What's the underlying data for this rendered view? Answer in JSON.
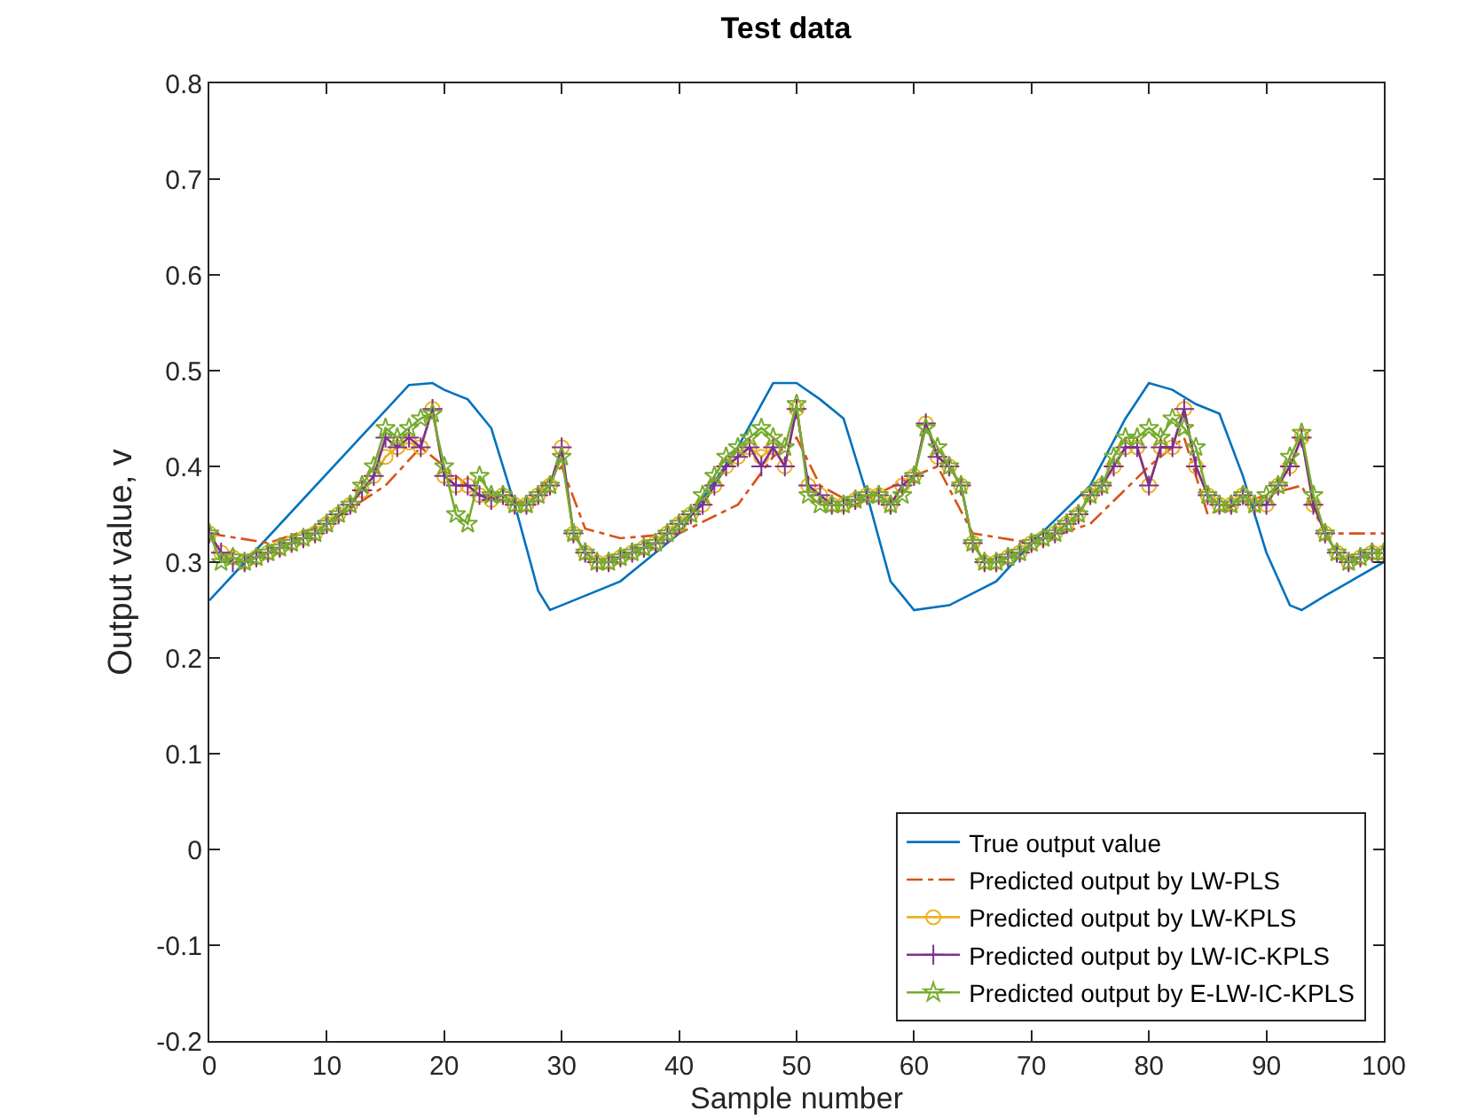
{
  "chart_data": {
    "type": "line",
    "title": "Test data",
    "xlabel": "Sample number",
    "ylabel": "Output value, v",
    "xlim": [
      0,
      100
    ],
    "xticks": [
      0,
      10,
      20,
      30,
      40,
      50,
      60,
      70,
      80,
      90,
      100
    ],
    "ylim": [
      -0.2,
      0.8
    ],
    "yticks": [
      -0.2,
      -0.1,
      0,
      0.1,
      0.2,
      0.3,
      0.4,
      0.5,
      0.6,
      0.7,
      0.8
    ],
    "grid": false,
    "legend": "bottom right",
    "x": [
      0,
      1,
      2,
      3,
      4,
      5,
      6,
      7,
      8,
      9,
      10,
      11,
      12,
      13,
      14,
      15,
      16,
      17,
      18,
      19,
      20,
      21,
      22,
      23,
      24,
      25,
      26,
      27,
      28,
      29,
      30,
      31,
      32,
      33,
      34,
      35,
      36,
      37,
      38,
      39,
      40,
      41,
      42,
      43,
      44,
      45,
      46,
      47,
      48,
      49,
      50,
      51,
      52,
      53,
      54,
      55,
      56,
      57,
      58,
      59,
      60,
      61,
      62,
      63,
      64,
      65,
      66,
      67,
      68,
      69,
      70,
      71,
      72,
      73,
      74,
      75,
      76,
      77,
      78,
      79,
      80,
      81,
      82,
      83,
      84,
      85,
      86,
      87,
      88,
      89,
      90,
      91,
      92,
      93,
      94,
      95,
      96,
      97,
      98,
      99,
      100
    ],
    "series": [
      {
        "name": "True output value",
        "color": "#0072bd",
        "marker": "none",
        "line_style": "solid",
        "x": [
          0,
          17,
          19,
          20,
          22,
          24,
          26,
          28,
          29,
          30,
          35,
          40,
          45,
          48,
          50,
          52,
          54,
          56,
          58,
          60,
          63,
          67,
          70,
          75,
          78,
          80,
          82,
          84,
          86,
          88,
          90,
          92,
          93,
          95,
          100
        ],
        "values": [
          0.26,
          0.485,
          0.487,
          0.48,
          0.47,
          0.44,
          0.36,
          0.27,
          0.25,
          0.255,
          0.28,
          0.33,
          0.42,
          0.487,
          0.487,
          0.47,
          0.45,
          0.37,
          0.28,
          0.25,
          0.255,
          0.28,
          0.32,
          0.38,
          0.45,
          0.487,
          0.48,
          0.465,
          0.455,
          0.39,
          0.31,
          0.255,
          0.25,
          0.265,
          0.3
        ]
      },
      {
        "name": "Predicted output by LW-PLS",
        "color": "#d95319",
        "marker": "none",
        "line_style": "dashdot",
        "x": [
          0,
          5,
          10,
          15,
          18,
          20,
          23,
          27,
          30,
          32,
          35,
          40,
          45,
          48,
          50,
          52,
          55,
          60,
          62,
          65,
          70,
          75,
          80,
          83,
          85,
          90,
          93,
          95,
          100
        ],
        "values": [
          0.33,
          0.32,
          0.34,
          0.38,
          0.42,
          0.4,
          0.37,
          0.36,
          0.4,
          0.335,
          0.325,
          0.33,
          0.36,
          0.41,
          0.43,
          0.38,
          0.36,
          0.39,
          0.4,
          0.33,
          0.32,
          0.34,
          0.4,
          0.43,
          0.35,
          0.37,
          0.38,
          0.33,
          0.33
        ]
      },
      {
        "name": "Predicted output by LW-KPLS",
        "color": "#edb120",
        "marker": "circle",
        "line_style": "solid",
        "values": [
          0.33,
          0.31,
          0.305,
          0.3,
          0.305,
          0.31,
          0.315,
          0.32,
          0.325,
          0.33,
          0.34,
          0.35,
          0.36,
          0.375,
          0.39,
          0.41,
          0.42,
          0.425,
          0.42,
          0.46,
          0.39,
          0.38,
          0.38,
          0.37,
          0.365,
          0.37,
          0.36,
          0.36,
          0.37,
          0.38,
          0.42,
          0.33,
          0.31,
          0.3,
          0.3,
          0.305,
          0.31,
          0.315,
          0.32,
          0.33,
          0.34,
          0.35,
          0.36,
          0.38,
          0.4,
          0.41,
          0.42,
          0.41,
          0.42,
          0.4,
          0.46,
          0.38,
          0.37,
          0.36,
          0.36,
          0.365,
          0.37,
          0.37,
          0.36,
          0.38,
          0.39,
          0.445,
          0.41,
          0.4,
          0.38,
          0.32,
          0.3,
          0.3,
          0.305,
          0.31,
          0.32,
          0.325,
          0.33,
          0.34,
          0.35,
          0.37,
          0.38,
          0.4,
          0.42,
          0.42,
          0.38,
          0.42,
          0.42,
          0.46,
          0.4,
          0.37,
          0.36,
          0.36,
          0.37,
          0.36,
          0.36,
          0.38,
          0.4,
          0.43,
          0.36,
          0.33,
          0.31,
          0.3,
          0.305,
          0.31,
          0.31
        ]
      },
      {
        "name": "Predicted output by LW-IC-KPLS",
        "color": "#7e2f8e",
        "marker": "cross",
        "line_style": "solid",
        "values": [
          0.33,
          0.31,
          0.3,
          0.3,
          0.305,
          0.31,
          0.315,
          0.32,
          0.325,
          0.33,
          0.34,
          0.35,
          0.36,
          0.375,
          0.39,
          0.43,
          0.42,
          0.43,
          0.42,
          0.46,
          0.39,
          0.38,
          0.38,
          0.37,
          0.365,
          0.37,
          0.36,
          0.36,
          0.37,
          0.38,
          0.42,
          0.33,
          0.31,
          0.3,
          0.3,
          0.305,
          0.31,
          0.315,
          0.32,
          0.33,
          0.34,
          0.35,
          0.36,
          0.38,
          0.4,
          0.41,
          0.42,
          0.4,
          0.42,
          0.4,
          0.46,
          0.38,
          0.37,
          0.36,
          0.36,
          0.365,
          0.37,
          0.37,
          0.36,
          0.38,
          0.39,
          0.445,
          0.41,
          0.4,
          0.38,
          0.32,
          0.3,
          0.3,
          0.305,
          0.31,
          0.32,
          0.325,
          0.33,
          0.34,
          0.35,
          0.37,
          0.38,
          0.4,
          0.42,
          0.42,
          0.38,
          0.42,
          0.42,
          0.46,
          0.4,
          0.37,
          0.36,
          0.36,
          0.37,
          0.36,
          0.36,
          0.38,
          0.4,
          0.43,
          0.36,
          0.33,
          0.31,
          0.3,
          0.305,
          0.31,
          0.31
        ]
      },
      {
        "name": "Predicted output by E-LW-IC-KPLS",
        "color": "#77ac30",
        "marker": "star",
        "line_style": "solid",
        "values": [
          0.33,
          0.3,
          0.305,
          0.3,
          0.305,
          0.31,
          0.315,
          0.32,
          0.325,
          0.33,
          0.34,
          0.35,
          0.36,
          0.38,
          0.4,
          0.44,
          0.43,
          0.44,
          0.45,
          0.455,
          0.4,
          0.35,
          0.34,
          0.39,
          0.37,
          0.37,
          0.36,
          0.36,
          0.37,
          0.38,
          0.41,
          0.33,
          0.31,
          0.3,
          0.3,
          0.305,
          0.31,
          0.315,
          0.32,
          0.33,
          0.34,
          0.35,
          0.37,
          0.39,
          0.41,
          0.42,
          0.43,
          0.44,
          0.43,
          0.42,
          0.465,
          0.37,
          0.36,
          0.36,
          0.36,
          0.365,
          0.37,
          0.37,
          0.36,
          0.37,
          0.39,
          0.44,
          0.42,
          0.4,
          0.38,
          0.32,
          0.3,
          0.3,
          0.305,
          0.31,
          0.32,
          0.325,
          0.33,
          0.34,
          0.35,
          0.37,
          0.38,
          0.41,
          0.43,
          0.43,
          0.44,
          0.43,
          0.45,
          0.44,
          0.42,
          0.37,
          0.36,
          0.36,
          0.37,
          0.36,
          0.37,
          0.38,
          0.41,
          0.435,
          0.37,
          0.33,
          0.31,
          0.3,
          0.305,
          0.31,
          0.31
        ]
      }
    ]
  }
}
